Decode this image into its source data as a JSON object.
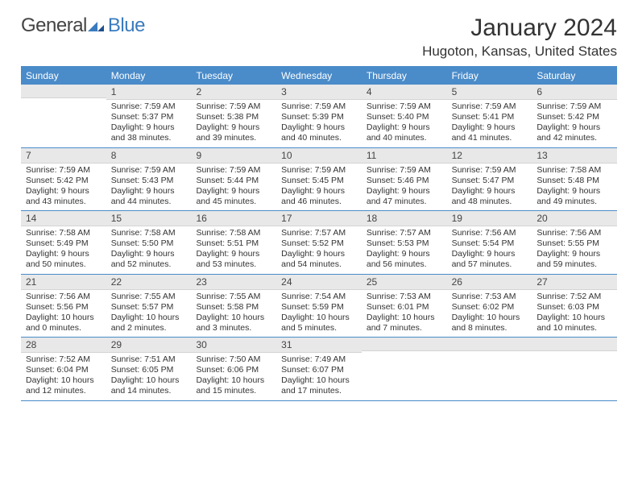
{
  "logo": {
    "word1": "General",
    "word2": "Blue"
  },
  "title": "January 2024",
  "location": "Hugoton, Kansas, United States",
  "colors": {
    "header_bg": "#4a8bc9",
    "header_text": "#ffffff",
    "row_border": "#4a8bc9",
    "daynum_bg": "#e8e8e8",
    "body_text": "#333333",
    "logo_gray": "#444444",
    "logo_blue": "#3a7bbf"
  },
  "days_of_week": [
    "Sunday",
    "Monday",
    "Tuesday",
    "Wednesday",
    "Thursday",
    "Friday",
    "Saturday"
  ],
  "weeks": [
    [
      {
        "empty": true
      },
      {
        "n": "1",
        "sr": "7:59 AM",
        "ss": "5:37 PM",
        "dl": "9 hours and 38 minutes."
      },
      {
        "n": "2",
        "sr": "7:59 AM",
        "ss": "5:38 PM",
        "dl": "9 hours and 39 minutes."
      },
      {
        "n": "3",
        "sr": "7:59 AM",
        "ss": "5:39 PM",
        "dl": "9 hours and 40 minutes."
      },
      {
        "n": "4",
        "sr": "7:59 AM",
        "ss": "5:40 PM",
        "dl": "9 hours and 40 minutes."
      },
      {
        "n": "5",
        "sr": "7:59 AM",
        "ss": "5:41 PM",
        "dl": "9 hours and 41 minutes."
      },
      {
        "n": "6",
        "sr": "7:59 AM",
        "ss": "5:42 PM",
        "dl": "9 hours and 42 minutes."
      }
    ],
    [
      {
        "n": "7",
        "sr": "7:59 AM",
        "ss": "5:42 PM",
        "dl": "9 hours and 43 minutes."
      },
      {
        "n": "8",
        "sr": "7:59 AM",
        "ss": "5:43 PM",
        "dl": "9 hours and 44 minutes."
      },
      {
        "n": "9",
        "sr": "7:59 AM",
        "ss": "5:44 PM",
        "dl": "9 hours and 45 minutes."
      },
      {
        "n": "10",
        "sr": "7:59 AM",
        "ss": "5:45 PM",
        "dl": "9 hours and 46 minutes."
      },
      {
        "n": "11",
        "sr": "7:59 AM",
        "ss": "5:46 PM",
        "dl": "9 hours and 47 minutes."
      },
      {
        "n": "12",
        "sr": "7:59 AM",
        "ss": "5:47 PM",
        "dl": "9 hours and 48 minutes."
      },
      {
        "n": "13",
        "sr": "7:58 AM",
        "ss": "5:48 PM",
        "dl": "9 hours and 49 minutes."
      }
    ],
    [
      {
        "n": "14",
        "sr": "7:58 AM",
        "ss": "5:49 PM",
        "dl": "9 hours and 50 minutes."
      },
      {
        "n": "15",
        "sr": "7:58 AM",
        "ss": "5:50 PM",
        "dl": "9 hours and 52 minutes."
      },
      {
        "n": "16",
        "sr": "7:58 AM",
        "ss": "5:51 PM",
        "dl": "9 hours and 53 minutes."
      },
      {
        "n": "17",
        "sr": "7:57 AM",
        "ss": "5:52 PM",
        "dl": "9 hours and 54 minutes."
      },
      {
        "n": "18",
        "sr": "7:57 AM",
        "ss": "5:53 PM",
        "dl": "9 hours and 56 minutes."
      },
      {
        "n": "19",
        "sr": "7:56 AM",
        "ss": "5:54 PM",
        "dl": "9 hours and 57 minutes."
      },
      {
        "n": "20",
        "sr": "7:56 AM",
        "ss": "5:55 PM",
        "dl": "9 hours and 59 minutes."
      }
    ],
    [
      {
        "n": "21",
        "sr": "7:56 AM",
        "ss": "5:56 PM",
        "dl": "10 hours and 0 minutes."
      },
      {
        "n": "22",
        "sr": "7:55 AM",
        "ss": "5:57 PM",
        "dl": "10 hours and 2 minutes."
      },
      {
        "n": "23",
        "sr": "7:55 AM",
        "ss": "5:58 PM",
        "dl": "10 hours and 3 minutes."
      },
      {
        "n": "24",
        "sr": "7:54 AM",
        "ss": "5:59 PM",
        "dl": "10 hours and 5 minutes."
      },
      {
        "n": "25",
        "sr": "7:53 AM",
        "ss": "6:01 PM",
        "dl": "10 hours and 7 minutes."
      },
      {
        "n": "26",
        "sr": "7:53 AM",
        "ss": "6:02 PM",
        "dl": "10 hours and 8 minutes."
      },
      {
        "n": "27",
        "sr": "7:52 AM",
        "ss": "6:03 PM",
        "dl": "10 hours and 10 minutes."
      }
    ],
    [
      {
        "n": "28",
        "sr": "7:52 AM",
        "ss": "6:04 PM",
        "dl": "10 hours and 12 minutes."
      },
      {
        "n": "29",
        "sr": "7:51 AM",
        "ss": "6:05 PM",
        "dl": "10 hours and 14 minutes."
      },
      {
        "n": "30",
        "sr": "7:50 AM",
        "ss": "6:06 PM",
        "dl": "10 hours and 15 minutes."
      },
      {
        "n": "31",
        "sr": "7:49 AM",
        "ss": "6:07 PM",
        "dl": "10 hours and 17 minutes."
      },
      {
        "empty": true
      },
      {
        "empty": true
      },
      {
        "empty": true
      }
    ]
  ],
  "labels": {
    "sunrise": "Sunrise:",
    "sunset": "Sunset:",
    "daylight": "Daylight:"
  }
}
